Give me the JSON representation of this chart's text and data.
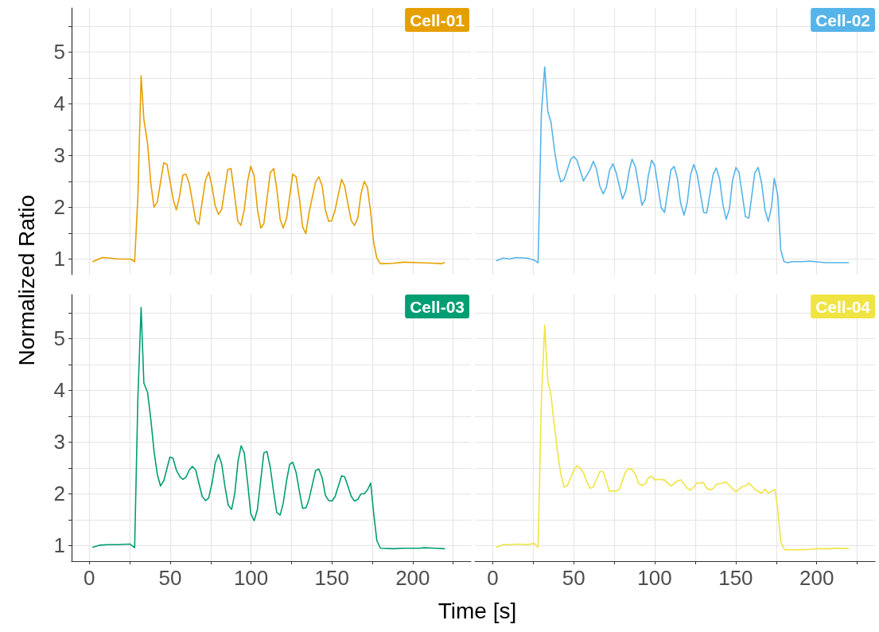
{
  "chart_data": [
    {
      "type": "line",
      "title": "Cell-01",
      "ylabel": "Normalized Ratio",
      "color": "#e69f00",
      "tick_labels": "y",
      "grid": true,
      "xlim": [
        -11,
        236
      ],
      "ylim": [
        0.7,
        5.85
      ],
      "xticks": [
        0,
        {
          "value": 25,
          "label": null
        },
        50,
        {
          "value": 75,
          "label": null
        },
        100,
        {
          "value": 125,
          "label": null
        },
        150,
        {
          "value": 175,
          "label": null
        },
        200,
        {
          "value": 225,
          "label": null
        }
      ],
      "yticks": [
        1,
        {
          "value": 1.5,
          "label": null
        },
        2,
        {
          "value": 2.5,
          "label": null
        },
        3,
        {
          "value": 3.5,
          "label": null
        },
        4,
        {
          "value": 4.5,
          "label": null
        },
        5,
        {
          "value": 5.5,
          "label": null
        }
      ],
      "x": [
        2.2,
        8,
        13,
        18,
        25.7,
        28,
        30,
        32,
        33.7,
        36,
        38,
        40,
        42,
        46,
        48,
        52,
        53.8,
        55.7,
        57.8,
        59.7,
        61.8,
        65.8,
        67.7,
        71.7,
        73.8,
        75.8,
        77.8,
        79.9,
        81.9,
        85.6,
        87.6,
        89.7,
        91.8,
        93.7,
        95.8,
        97.9,
        99.8,
        101.9,
        104,
        106,
        107.9,
        111.9,
        114,
        115.9,
        118,
        119.9,
        122,
        125.8,
        127.9,
        130,
        131.9,
        133.9,
        135.9,
        139.9,
        141.9,
        144,
        146,
        148,
        149.9,
        152,
        156,
        157.9,
        160,
        162,
        164,
        166,
        168,
        170,
        172,
        174,
        175.8,
        177.8,
        180,
        188,
        194.5,
        204,
        213.8,
        217.8,
        219.6
      ],
      "values": [
        0.95,
        1.03,
        1.02,
        1.0,
        1.0,
        0.95,
        2.2,
        4.54,
        3.7,
        3.23,
        2.46,
        2.0,
        2.1,
        2.86,
        2.83,
        2.13,
        1.95,
        2.2,
        2.62,
        2.64,
        2.46,
        1.74,
        1.67,
        2.51,
        2.68,
        2.41,
        2.03,
        1.86,
        1.97,
        2.73,
        2.75,
        2.26,
        1.74,
        1.65,
        1.95,
        2.51,
        2.79,
        2.61,
        1.95,
        1.6,
        1.68,
        2.67,
        2.75,
        2.36,
        1.77,
        1.6,
        1.79,
        2.64,
        2.59,
        2.15,
        1.62,
        1.49,
        1.9,
        2.49,
        2.59,
        2.41,
        1.95,
        1.73,
        1.74,
        1.95,
        2.54,
        2.41,
        2.05,
        1.74,
        1.65,
        1.79,
        2.26,
        2.5,
        2.38,
        1.9,
        1.33,
        1.02,
        0.91,
        0.92,
        0.94,
        0.93,
        0.92,
        0.91,
        0.93
      ]
    },
    {
      "type": "line",
      "title": "Cell-02",
      "color": "#56b4e9",
      "tick_labels": false,
      "grid": true,
      "xlim": [
        -11,
        236
      ],
      "ylim": [
        0.7,
        5.85
      ],
      "xticks": [
        0,
        {
          "value": 25,
          "label": null
        },
        50,
        {
          "value": 75,
          "label": null
        },
        100,
        {
          "value": 125,
          "label": null
        },
        150,
        {
          "value": 175,
          "label": null
        },
        200,
        {
          "value": 225,
          "label": null
        }
      ],
      "yticks": [
        1,
        {
          "value": 1.5,
          "label": null
        },
        2,
        {
          "value": 2.5,
          "label": null
        },
        3,
        {
          "value": 3.5,
          "label": null
        },
        4,
        {
          "value": 4.5,
          "label": null
        },
        5,
        {
          "value": 5.5,
          "label": null
        }
      ],
      "x": [
        2.4,
        6.4,
        10.4,
        14.4,
        20.9,
        25.7,
        28,
        30,
        32.1,
        34,
        36,
        38,
        40.1,
        42,
        44.1,
        48.2,
        50.1,
        52,
        56,
        58.1,
        60,
        62.1,
        64,
        66.1,
        68.2,
        70.1,
        72.2,
        74.2,
        76.2,
        80.1,
        82.2,
        84.3,
        86,
        88.1,
        92.1,
        94.1,
        96.1,
        98.1,
        100,
        104,
        106.1,
        110,
        112,
        114,
        116,
        118.1,
        120.1,
        122.1,
        124.1,
        126.2,
        130.2,
        132.1,
        136.1,
        138,
        140.1,
        142.1,
        144.1,
        146.1,
        148,
        150.1,
        152,
        156,
        158.1,
        161.8,
        163.9,
        166,
        168.1,
        170.1,
        172.1,
        173.8,
        176,
        177.8,
        179.8,
        182.2,
        184.6,
        191,
        195.8,
        199,
        205.5,
        213.5,
        219.6
      ],
      "values": [
        0.97,
        1.02,
        1.0,
        1.03,
        1.02,
        0.98,
        0.93,
        3.79,
        4.71,
        3.85,
        3.64,
        3.13,
        2.72,
        2.49,
        2.54,
        2.93,
        2.98,
        2.91,
        2.51,
        2.62,
        2.72,
        2.89,
        2.74,
        2.41,
        2.26,
        2.38,
        2.72,
        2.84,
        2.67,
        2.16,
        2.32,
        2.72,
        2.93,
        2.78,
        2.04,
        2.15,
        2.62,
        2.91,
        2.81,
        1.99,
        1.9,
        2.72,
        2.79,
        2.56,
        2.08,
        1.85,
        2.1,
        2.62,
        2.83,
        2.64,
        1.9,
        1.89,
        2.64,
        2.76,
        2.54,
        2.05,
        1.77,
        1.97,
        2.51,
        2.77,
        2.68,
        1.82,
        1.79,
        2.67,
        2.77,
        2.46,
        1.95,
        1.73,
        2.0,
        2.56,
        2.22,
        1.18,
        0.95,
        0.93,
        0.95,
        0.95,
        0.96,
        0.95,
        0.93,
        0.93,
        0.93
      ]
    },
    {
      "type": "line",
      "title": "Cell-03",
      "xlabel": "Time [s]",
      "color": "#009e73",
      "grid": true,
      "xlim": [
        -11,
        236
      ],
      "ylim": [
        0.7,
        5.85
      ],
      "xticks": [
        0,
        {
          "value": 25,
          "label": null
        },
        50,
        {
          "value": 75,
          "label": null
        },
        100,
        {
          "value": 125,
          "label": null
        },
        150,
        {
          "value": 175,
          "label": null
        },
        200,
        {
          "value": 225,
          "label": null
        }
      ],
      "yticks": [
        1,
        {
          "value": 1.5,
          "label": null
        },
        2,
        {
          "value": 2.5,
          "label": null
        },
        3,
        {
          "value": 3.5,
          "label": null
        },
        4,
        {
          "value": 4.5,
          "label": null
        },
        5,
        {
          "value": 5.5,
          "label": null
        }
      ],
      "x": [
        2.2,
        6.7,
        11.6,
        18,
        25.2,
        28,
        30,
        32,
        33.7,
        36,
        38,
        40,
        42,
        44,
        46.1,
        49.8,
        51.7,
        53.8,
        56,
        57.8,
        59.7,
        61.8,
        63.7,
        65.8,
        67.7,
        69.8,
        71.9,
        73.8,
        75.9,
        77.8,
        79.9,
        81.9,
        83.8,
        85.9,
        88,
        89.9,
        92,
        93.9,
        95.8,
        97.9,
        99.8,
        101.9,
        103.9,
        105.8,
        107.9,
        109.8,
        111.9,
        114,
        115.9,
        118,
        119.9,
        122,
        123.9,
        125.8,
        127.9,
        130,
        131.9,
        134,
        135.9,
        139.9,
        141.9,
        144,
        146,
        148,
        150.1,
        152,
        156,
        157.9,
        160,
        162,
        164,
        166,
        168,
        170,
        172.1,
        174,
        175.8,
        177.8,
        180,
        188,
        194.5,
        204,
        207.3,
        213.8,
        219.6
      ],
      "values": [
        0.97,
        1.01,
        1.02,
        1.02,
        1.03,
        0.96,
        3.85,
        5.6,
        4.14,
        3.96,
        3.44,
        2.82,
        2.38,
        2.15,
        2.26,
        2.71,
        2.69,
        2.46,
        2.33,
        2.28,
        2.32,
        2.46,
        2.53,
        2.46,
        2.21,
        1.95,
        1.87,
        1.92,
        2.21,
        2.59,
        2.76,
        2.57,
        2.15,
        1.78,
        1.7,
        2.0,
        2.64,
        2.93,
        2.79,
        2.21,
        1.62,
        1.48,
        1.69,
        2.21,
        2.79,
        2.82,
        2.51,
        2.03,
        1.64,
        1.59,
        1.82,
        2.26,
        2.57,
        2.61,
        2.41,
        2.03,
        1.72,
        1.73,
        1.9,
        2.45,
        2.48,
        2.31,
        1.97,
        1.87,
        1.86,
        1.95,
        2.35,
        2.33,
        2.14,
        1.95,
        1.86,
        1.89,
        2.0,
        2.0,
        2.08,
        2.21,
        1.64,
        1.1,
        0.95,
        0.94,
        0.95,
        0.95,
        0.96,
        0.95,
        0.94
      ]
    },
    {
      "type": "line",
      "title": "Cell-04",
      "color": "#f0e442",
      "tick_labels": "x",
      "grid": true,
      "xlim": [
        -11,
        236
      ],
      "ylim": [
        0.7,
        5.85
      ],
      "xticks": [
        0,
        {
          "value": 25,
          "label": null
        },
        50,
        {
          "value": 75,
          "label": null
        },
        100,
        {
          "value": 125,
          "label": null
        },
        150,
        {
          "value": 175,
          "label": null
        },
        200,
        {
          "value": 225,
          "label": null
        }
      ],
      "yticks": [
        1,
        {
          "value": 1.5,
          "label": null
        },
        2,
        {
          "value": 2.5,
          "label": null
        },
        3,
        {
          "value": 3.5,
          "label": null
        },
        4,
        {
          "value": 4.5,
          "label": null
        },
        5,
        {
          "value": 5.5,
          "label": null
        }
      ],
      "x": [
        2.4,
        6.4,
        12.8,
        14.4,
        20.9,
        25.7,
        28,
        30,
        32.1,
        34,
        36,
        38,
        40.1,
        42,
        44.1,
        46.1,
        50.1,
        52,
        53.9,
        56,
        58.1,
        60,
        62.1,
        64,
        66.1,
        68.1,
        70.2,
        72.1,
        74.2,
        76.1,
        78.2,
        82,
        84,
        86,
        88,
        90,
        92.1,
        94.1,
        96.1,
        98.1,
        100.2,
        102.1,
        106,
        110,
        114,
        116.1,
        120.1,
        122,
        124.1,
        126,
        128.1,
        130,
        132.1,
        134,
        136.1,
        138,
        142.1,
        144.1,
        148,
        150.1,
        154.1,
        156,
        158.1,
        162.1,
        166,
        168.1,
        170.1,
        174.2,
        176,
        177.8,
        180.1,
        184.6,
        191,
        195.8,
        200.6,
        207.1,
        213.5,
        219.6
      ],
      "values": [
        0.97,
        1.02,
        1.02,
        1.03,
        1.02,
        1.04,
        0.97,
        3.79,
        5.26,
        4.18,
        3.9,
        3.33,
        2.79,
        2.38,
        2.13,
        2.16,
        2.46,
        2.54,
        2.5,
        2.41,
        2.23,
        2.11,
        2.13,
        2.28,
        2.43,
        2.43,
        2.23,
        2.05,
        2.06,
        2.05,
        2.09,
        2.42,
        2.49,
        2.47,
        2.38,
        2.21,
        2.16,
        2.19,
        2.31,
        2.34,
        2.27,
        2.28,
        2.27,
        2.15,
        2.25,
        2.27,
        2.11,
        2.07,
        2.13,
        2.21,
        2.21,
        2.22,
        2.11,
        2.08,
        2.1,
        2.18,
        2.21,
        2.23,
        2.1,
        2.04,
        2.14,
        2.15,
        2.21,
        2.08,
        2.01,
        2.09,
        2.01,
        2.09,
        1.69,
        1.08,
        0.92,
        0.92,
        0.92,
        0.93,
        0.94,
        0.94,
        0.95,
        0.94
      ]
    }
  ]
}
